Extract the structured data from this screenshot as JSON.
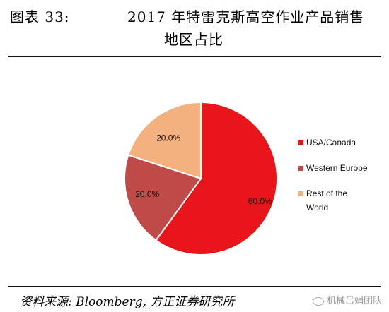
{
  "figure": {
    "label": "图表 33:",
    "title_line1": "2017 年特雷克斯高空作业产品销售",
    "title_line2": "地区占比"
  },
  "chart_data": {
    "type": "pie",
    "title": "2017 年特雷克斯高空作业产品销售地区占比",
    "categories": [
      "USA/Canada",
      "Western Europe",
      "Rest of the World"
    ],
    "values": [
      60.0,
      20.0,
      20.0
    ],
    "labels": [
      "60.0%",
      "20.0%",
      "20.0%"
    ],
    "legend": [
      "USA/Canada",
      "Western Europe",
      "Rest of the World"
    ],
    "legend_position": "right",
    "colors": [
      "#e8161b",
      "#be4b48",
      "#f5b07f"
    ]
  },
  "source": "资料来源: Bloomberg, 方正证券研究所",
  "watermark": "机械吕娟团队"
}
